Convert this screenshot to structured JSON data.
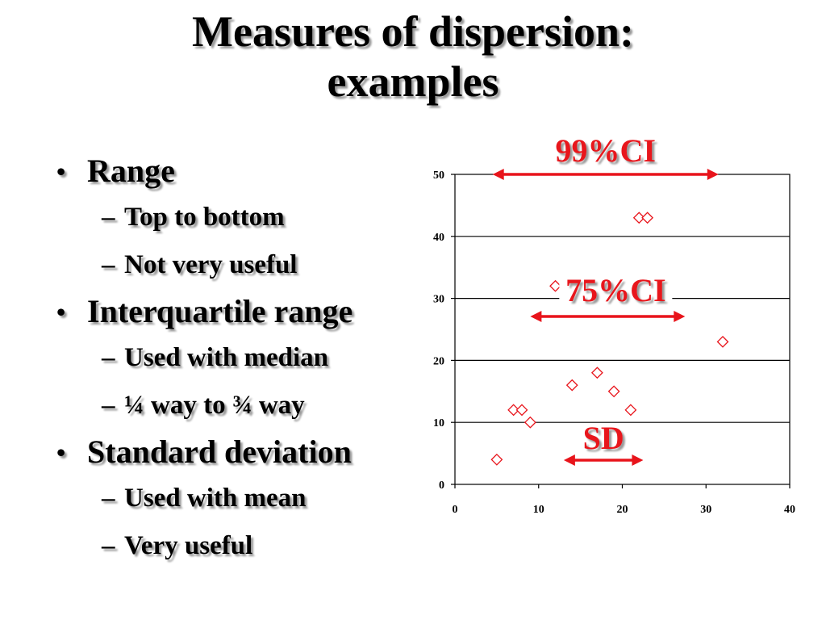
{
  "slide": {
    "title_line1": "Measures of dispersion:",
    "title_line2": "examples",
    "bullets": [
      {
        "label": "Range",
        "sub": [
          "Top to bottom",
          "Not very useful"
        ]
      },
      {
        "label": "Interquartile range",
        "sub": [
          "Used with median",
          "¼ way to ¾ way"
        ]
      },
      {
        "label": "Standard deviation",
        "sub": [
          "Used with mean",
          "Very useful"
        ]
      }
    ],
    "bullet_marker": "•",
    "sub_marker": "–"
  },
  "chart_data": {
    "type": "scatter",
    "title": "",
    "xlabel": "",
    "ylabel": "",
    "xlim": [
      0,
      40
    ],
    "ylim": [
      0,
      50
    ],
    "x_ticks": [
      0,
      10,
      20,
      30,
      40
    ],
    "y_ticks": [
      0,
      10,
      20,
      30,
      40,
      50
    ],
    "grid": "horizontal",
    "marker": "diamond-outline",
    "marker_color": "#e8141b",
    "points": [
      {
        "x": 5,
        "y": 4
      },
      {
        "x": 7,
        "y": 12
      },
      {
        "x": 8,
        "y": 12
      },
      {
        "x": 9,
        "y": 10
      },
      {
        "x": 12,
        "y": 32
      },
      {
        "x": 14,
        "y": 16
      },
      {
        "x": 17,
        "y": 18
      },
      {
        "x": 19,
        "y": 15
      },
      {
        "x": 21,
        "y": 12
      },
      {
        "x": 22,
        "y": 43
      },
      {
        "x": 23,
        "y": 43
      },
      {
        "x": 32,
        "y": 23
      }
    ],
    "annotations": [
      {
        "label": "99%CI",
        "x_from": 4.5,
        "x_to": 31.5
      },
      {
        "label": "75%CI",
        "x_from": 9,
        "x_to": 27.5
      },
      {
        "label": "SD",
        "x_from": 13,
        "x_to": 22.5
      }
    ],
    "annotation_color": "#e8141b"
  }
}
